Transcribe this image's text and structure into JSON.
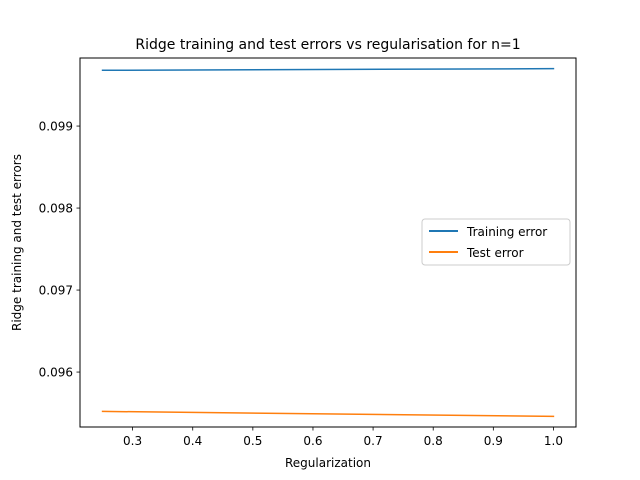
{
  "chart_data": {
    "type": "line",
    "title": "Ridge training and test errors vs regularisation for n=1",
    "xlabel": "Regularization",
    "ylabel": "Ridge training and test errors",
    "xlim": [
      0.2125,
      1.0375
    ],
    "ylim": [
      0.09533,
      0.09983
    ],
    "xticks": [
      0.3,
      0.4,
      0.5,
      0.6,
      0.7,
      0.8,
      0.9,
      1.0
    ],
    "xtick_labels": [
      "0.3",
      "0.4",
      "0.5",
      "0.6",
      "0.7",
      "0.8",
      "0.9",
      "1.0"
    ],
    "yticks": [
      0.096,
      0.097,
      0.098,
      0.099
    ],
    "ytick_labels": [
      "0.096",
      "0.097",
      "0.098",
      "0.099"
    ],
    "grid": false,
    "legend_position": "center-right",
    "x": [
      0.25,
      1.0
    ],
    "series": [
      {
        "name": "Training error",
        "color": "#1f77b4",
        "values": [
          0.09968,
          0.0997
        ]
      },
      {
        "name": "Test error",
        "color": "#ff7f0e",
        "values": [
          0.09552,
          0.09546
        ]
      }
    ]
  }
}
